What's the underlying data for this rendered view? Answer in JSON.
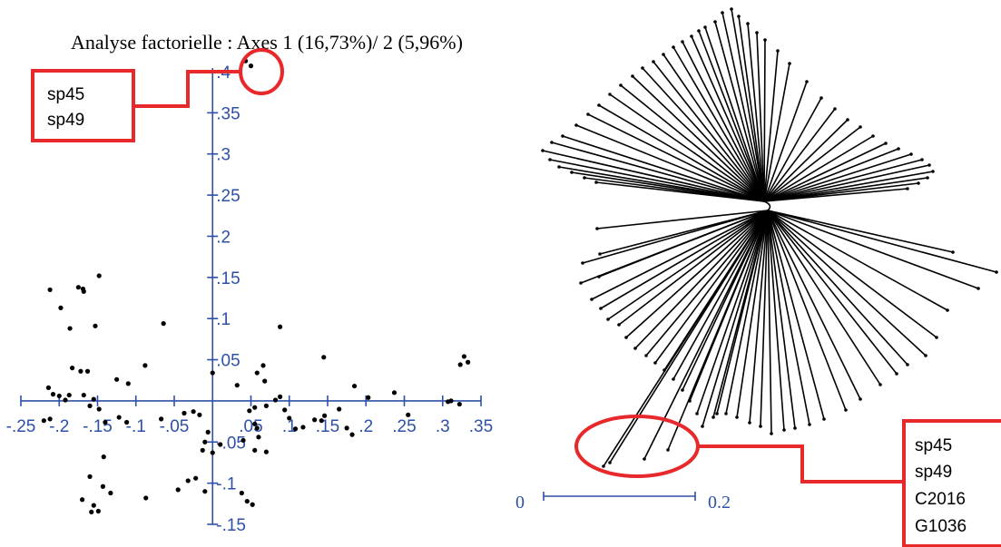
{
  "colors": {
    "axis": "#2e50a8",
    "highlight": "#e8292b",
    "points": "#000000"
  },
  "chart_data": [
    {
      "type": "scatter",
      "title": "Analyse factorielle : Axes 1 (16,73%)/ 2 (5,96%)",
      "xlim": [
        -0.25,
        0.35
      ],
      "ylim": [
        -0.15,
        0.4
      ],
      "xticks": [
        {
          "v": -0.25,
          "label": "-.25"
        },
        {
          "v": -0.2,
          "label": "-.2"
        },
        {
          "v": -0.15,
          "label": "-.15"
        },
        {
          "v": -0.1,
          "label": "-.1"
        },
        {
          "v": -0.05,
          "label": "-.05"
        },
        {
          "v": 0.05,
          "label": ".05"
        },
        {
          "v": 0.1,
          "label": ".1"
        },
        {
          "v": 0.15,
          "label": ".15"
        },
        {
          "v": 0.2,
          "label": ".2"
        },
        {
          "v": 0.25,
          "label": ".25"
        },
        {
          "v": 0.3,
          "label": ".3"
        },
        {
          "v": 0.35,
          "label": ".35"
        }
      ],
      "yticks": [
        {
          "v": 0.4,
          "label": ".4"
        },
        {
          "v": 0.35,
          "label": ".35"
        },
        {
          "v": 0.3,
          "label": ".3"
        },
        {
          "v": 0.25,
          "label": ".25"
        },
        {
          "v": 0.2,
          "label": ".2"
        },
        {
          "v": 0.15,
          "label": ".15"
        },
        {
          "v": 0.1,
          "label": ".1"
        },
        {
          "v": 0.05,
          "label": ".05"
        },
        {
          "v": -0.05,
          "label": "-.05"
        },
        {
          "v": -0.1,
          "label": "-.1"
        },
        {
          "v": -0.15,
          "label": "-.15"
        }
      ],
      "grid": false,
      "highlight_box": {
        "lines": [
          "sp45",
          "sp49"
        ]
      },
      "points": [
        [
          0.043,
          0.413
        ],
        [
          0.05,
          0.407
        ],
        [
          -0.212,
          0.135
        ],
        [
          -0.198,
          0.113
        ],
        [
          -0.175,
          0.138
        ],
        [
          -0.169,
          0.136
        ],
        [
          -0.168,
          0.133
        ],
        [
          -0.148,
          0.152
        ],
        [
          -0.186,
          0.088
        ],
        [
          -0.153,
          0.091
        ],
        [
          -0.064,
          0.094
        ],
        [
          0.088,
          0.09
        ],
        [
          0.145,
          0.053
        ],
        [
          -0.183,
          0.04
        ],
        [
          -0.172,
          0.036
        ],
        [
          -0.163,
          0.036
        ],
        [
          -0.125,
          0.026
        ],
        [
          -0.11,
          0.021
        ],
        [
          -0.088,
          0.043
        ],
        [
          0.0,
          0.034
        ],
        [
          0.032,
          0.019
        ],
        [
          0.058,
          0.034
        ],
        [
          0.066,
          0.043
        ],
        [
          0.068,
          0.024
        ],
        [
          0.185,
          0.018
        ],
        [
          0.237,
          0.01
        ],
        [
          0.328,
          0.054
        ],
        [
          0.333,
          0.047
        ],
        [
          0.323,
          0.044
        ],
        [
          -0.214,
          0.016
        ],
        [
          -0.208,
          0.008
        ],
        [
          -0.2,
          0.006
        ],
        [
          -0.192,
          0.001
        ],
        [
          -0.187,
          0.007
        ],
        [
          -0.168,
          0.007
        ],
        [
          -0.155,
          0.002
        ],
        [
          -0.148,
          -0.01
        ],
        [
          -0.16,
          -0.006
        ],
        [
          -0.212,
          -0.022
        ],
        [
          -0.22,
          -0.024
        ],
        [
          -0.14,
          -0.026
        ],
        [
          -0.122,
          -0.02
        ],
        [
          -0.112,
          -0.026
        ],
        [
          -0.067,
          -0.022
        ],
        [
          -0.037,
          -0.015
        ],
        [
          -0.025,
          -0.013
        ],
        [
          -0.017,
          -0.017
        ],
        [
          0.048,
          -0.012
        ],
        [
          0.055,
          -0.008
        ],
        [
          0.07,
          -0.006
        ],
        [
          0.082,
          0.001
        ],
        [
          0.088,
          0.005
        ],
        [
          0.094,
          -0.011
        ],
        [
          0.1,
          -0.021
        ],
        [
          0.108,
          -0.034
        ],
        [
          0.118,
          -0.032
        ],
        [
          0.133,
          -0.023
        ],
        [
          0.142,
          -0.024
        ],
        [
          0.146,
          -0.018
        ],
        [
          0.165,
          -0.01
        ],
        [
          0.182,
          -0.041
        ],
        [
          0.175,
          -0.033
        ],
        [
          0.203,
          0.004
        ],
        [
          0.255,
          -0.017
        ],
        [
          0.307,
          -0.001
        ],
        [
          0.311,
          0.0
        ],
        [
          0.322,
          -0.004
        ],
        [
          0.055,
          -0.028
        ],
        [
          0.058,
          -0.033
        ],
        [
          0.06,
          -0.044
        ],
        [
          0.055,
          -0.06
        ],
        [
          0.07,
          -0.062
        ],
        [
          0.04,
          -0.048
        ],
        [
          0.01,
          -0.053
        ],
        [
          -0.006,
          -0.038
        ],
        [
          -0.01,
          -0.05
        ],
        [
          -0.013,
          -0.06
        ],
        [
          0.0,
          -0.063
        ],
        [
          -0.142,
          -0.068
        ],
        [
          -0.16,
          -0.092
        ],
        [
          -0.143,
          -0.104
        ],
        [
          -0.133,
          -0.112
        ],
        [
          -0.17,
          -0.12
        ],
        [
          -0.155,
          -0.127
        ],
        [
          -0.149,
          -0.134
        ],
        [
          -0.158,
          -0.135
        ],
        [
          -0.087,
          -0.118
        ],
        [
          -0.045,
          -0.108
        ],
        [
          -0.032,
          -0.097
        ],
        [
          -0.022,
          -0.094
        ],
        [
          -0.01,
          -0.11
        ],
        [
          0.038,
          -0.112
        ],
        [
          0.045,
          -0.122
        ],
        [
          0.052,
          -0.126
        ]
      ]
    },
    {
      "type": "tree",
      "scale_bar": {
        "start_label": "0",
        "end_label": "0.2"
      },
      "highlight_box": {
        "lines": [
          "sp45",
          "sp49",
          "C2016",
          "G1036"
        ]
      }
    }
  ]
}
